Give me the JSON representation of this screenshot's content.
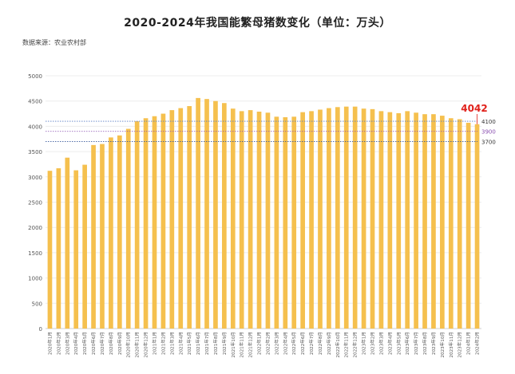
{
  "title": "2020-2024年我国能繁母猪数变化（单位：万头）",
  "source": "数据来源：农业农村部",
  "chart_data": {
    "type": "bar",
    "title": "2020-2024年我国能繁母猪数变化（单位：万头）",
    "ylim": [
      0,
      5000
    ],
    "yticks": [
      0,
      500,
      1000,
      1500,
      2000,
      2500,
      3000,
      3500,
      4000,
      4500,
      5000
    ],
    "categories": [
      "2020年1月",
      "2020年2月",
      "2020年3月",
      "2020年4月",
      "2020年5月",
      "2020年6月",
      "2020年7月",
      "2020年8月",
      "2020年9月",
      "2020年10月",
      "2020年11月",
      "2020年12月",
      "2021年1月",
      "2021年2月",
      "2021年3月",
      "2021年4月",
      "2021年5月",
      "2021年6月",
      "2021年7月",
      "2021年8月",
      "2021年9月",
      "2021年10月",
      "2021年11月",
      "2021年12月",
      "2022年1月",
      "2022年2月",
      "2022年3月",
      "2022年4月",
      "2022年5月",
      "2022年6月",
      "2022年7月",
      "2022年8月",
      "2022年9月",
      "2022年10月",
      "2022年11月",
      "2022年12月",
      "2023年1月",
      "2023年2月",
      "2023年3月",
      "2023年4月",
      "2023年5月",
      "2023年6月",
      "2023年7月",
      "2023年8月",
      "2023年9月",
      "2023年10月",
      "2023年11月",
      "2023年12月",
      "2024年1月",
      "2024年2月"
    ],
    "values": [
      3120,
      3170,
      3380,
      3130,
      3240,
      3630,
      3650,
      3780,
      3820,
      3950,
      4100,
      4160,
      4200,
      4250,
      4320,
      4360,
      4400,
      4560,
      4540,
      4500,
      4460,
      4350,
      4300,
      4320,
      4290,
      4270,
      4190,
      4180,
      4190,
      4280,
      4300,
      4330,
      4360,
      4380,
      4390,
      4390,
      4350,
      4340,
      4300,
      4280,
      4260,
      4300,
      4270,
      4240,
      4240,
      4210,
      4160,
      4140,
      4070,
      4042
    ],
    "reference_lines": [
      {
        "value": 4100,
        "label": "4100",
        "color": "#5b7fc4"
      },
      {
        "value": 3900,
        "label": "3900",
        "color": "#8a4fb0"
      },
      {
        "value": 3700,
        "label": "3700",
        "color": "#3a5a9c"
      }
    ],
    "annotation": {
      "label": "4042",
      "color": "#e0211b"
    },
    "bar_color": "#f5c04e",
    "grid": true
  }
}
